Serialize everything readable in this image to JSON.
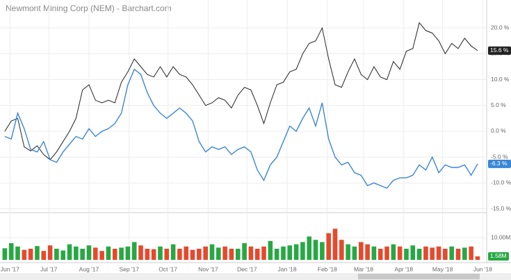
{
  "chart_data": [
    {
      "type": "line",
      "title": "Newmont Mining Corp (NEM) - Barchart.com",
      "x": [
        -4,
        1,
        6,
        11,
        16,
        21,
        26,
        31,
        36,
        41,
        46,
        51,
        56,
        61,
        66,
        71,
        76,
        81,
        86,
        91,
        96,
        101,
        106,
        111,
        116,
        121,
        126,
        131,
        136,
        141,
        146,
        151,
        156,
        161,
        166,
        171,
        176,
        181,
        186,
        191,
        196,
        201,
        206,
        211,
        216,
        221,
        226,
        231,
        236,
        241,
        246,
        251,
        256,
        261,
        266,
        271,
        276,
        281,
        286,
        291,
        296,
        301,
        306,
        311,
        316,
        321,
        326,
        331,
        336,
        341,
        346,
        351,
        356,
        361
      ],
      "xlim": [
        -5,
        368
      ],
      "xticks": [
        {
          "value": 0,
          "label": "Jun '17"
        },
        {
          "value": 30,
          "label": "Jul '17"
        },
        {
          "value": 61,
          "label": "Aug '17"
        },
        {
          "value": 92,
          "label": "Sep '17"
        },
        {
          "value": 122,
          "label": "Oct '17"
        },
        {
          "value": 153,
          "label": "Nov '17"
        },
        {
          "value": 183,
          "label": "Dec '17"
        },
        {
          "value": 214,
          "label": "Jan '18"
        },
        {
          "value": 245,
          "label": "Feb '18"
        },
        {
          "value": 273,
          "label": "Mar '18"
        },
        {
          "value": 304,
          "label": "Apr '18"
        },
        {
          "value": 334,
          "label": "May '18"
        },
        {
          "value": 365,
          "label": "Jun '18"
        }
      ],
      "ylim": [
        -15.6,
        25.4
      ],
      "yticks": [
        {
          "value": 20,
          "label": "20.0 %"
        },
        {
          "value": 15,
          "label": "15.0 %"
        },
        {
          "value": 10,
          "label": "10.0 %"
        },
        {
          "value": 5,
          "label": "5.0 %"
        },
        {
          "value": 0,
          "label": "0.0 %"
        },
        {
          "value": -5,
          "label": "-5.0 %"
        },
        {
          "value": -10,
          "label": "-10.0 %"
        },
        {
          "value": -15,
          "label": "-15.0 %"
        }
      ],
      "grid": true,
      "series": [
        {
          "color": "#222222",
          "last_label": "15.6 %",
          "values": [
            0.0,
            2.0,
            2.5,
            -3.0,
            -3.8,
            -2.8,
            -4.5,
            -5.5,
            -4.0,
            -2.0,
            0.0,
            2.5,
            8.0,
            9.0,
            6.0,
            5.5,
            6.0,
            5.5,
            9.5,
            11.5,
            14.0,
            12.5,
            11.0,
            10.5,
            12.5,
            10.5,
            12.5,
            11.0,
            10.5,
            9.0,
            7.0,
            5.0,
            5.5,
            6.5,
            6.0,
            4.5,
            7.0,
            8.5,
            8.0,
            5.0,
            1.5,
            5.5,
            9.0,
            9.5,
            11.5,
            12.0,
            15.0,
            17.0,
            17.5,
            20.0,
            14.0,
            9.0,
            8.5,
            11.5,
            14.0,
            11.0,
            10.0,
            12.5,
            10.5,
            10.0,
            13.5,
            12.0,
            15.5,
            16.0,
            21.0,
            19.5,
            19.0,
            17.5,
            15.0,
            17.0,
            16.0,
            18.0,
            16.5,
            15.6
          ]
        },
        {
          "color": "#3a86d6",
          "last_label": "-6.3 %",
          "values": [
            -1.0,
            -1.5,
            3.5,
            0.5,
            -3.5,
            -4.0,
            -2.0,
            -5.5,
            -6.0,
            -4.0,
            -2.5,
            -1.0,
            -1.5,
            0.5,
            -1.0,
            0.0,
            0.5,
            1.5,
            3.5,
            9.0,
            12.0,
            11.0,
            7.5,
            5.0,
            3.5,
            2.5,
            3.5,
            4.5,
            3.5,
            2.0,
            -2.0,
            -4.0,
            -3.0,
            -3.5,
            -3.0,
            -4.5,
            -3.5,
            -3.0,
            -4.0,
            -7.5,
            -9.5,
            -6.5,
            -5.0,
            -2.0,
            1.0,
            0.0,
            2.5,
            4.5,
            1.0,
            5.5,
            -1.5,
            -5.0,
            -6.5,
            -6.0,
            -8.0,
            -8.5,
            -10.5,
            -10.0,
            -10.5,
            -11.0,
            -9.5,
            -9.0,
            -9.0,
            -8.5,
            -6.5,
            -7.5,
            -5.0,
            -8.0,
            -6.5,
            -7.0,
            -7.0,
            -6.5,
            -8.5,
            -6.3
          ]
        }
      ]
    },
    {
      "type": "bar",
      "ylim": [
        0,
        20
      ],
      "yticks": [
        {
          "value": 10,
          "label": "10.00M"
        }
      ],
      "up_color": "#27a844",
      "down_color": "#e6492d",
      "last_label": "1.58M",
      "values": [
        5.2,
        7.5,
        6.0,
        4.5,
        5.0,
        6.2,
        4.0,
        6.5,
        5.0,
        4.2,
        7.0,
        6.0,
        5.0,
        6.5,
        5.5,
        4.0,
        6.0,
        5.0,
        5.5,
        6.0,
        8.0,
        6.5,
        5.0,
        4.8,
        6.0,
        5.0,
        7.0,
        5.0,
        6.0,
        4.5,
        5.0,
        6.0,
        7.0,
        5.5,
        6.0,
        5.0,
        5.0,
        7.5,
        6.0,
        5.0,
        6.0,
        8.5,
        5.0,
        6.0,
        6.5,
        7.0,
        8.0,
        10.5,
        9.0,
        8.0,
        12.0,
        14.0,
        9.0,
        7.0,
        6.0,
        8.0,
        7.0,
        6.0,
        5.0,
        6.0,
        7.0,
        6.0,
        5.0,
        6.5,
        5.0,
        6.0,
        5.5,
        6.0,
        5.0,
        6.0,
        5.0,
        5.5,
        6.0,
        1.58
      ]
    }
  ]
}
